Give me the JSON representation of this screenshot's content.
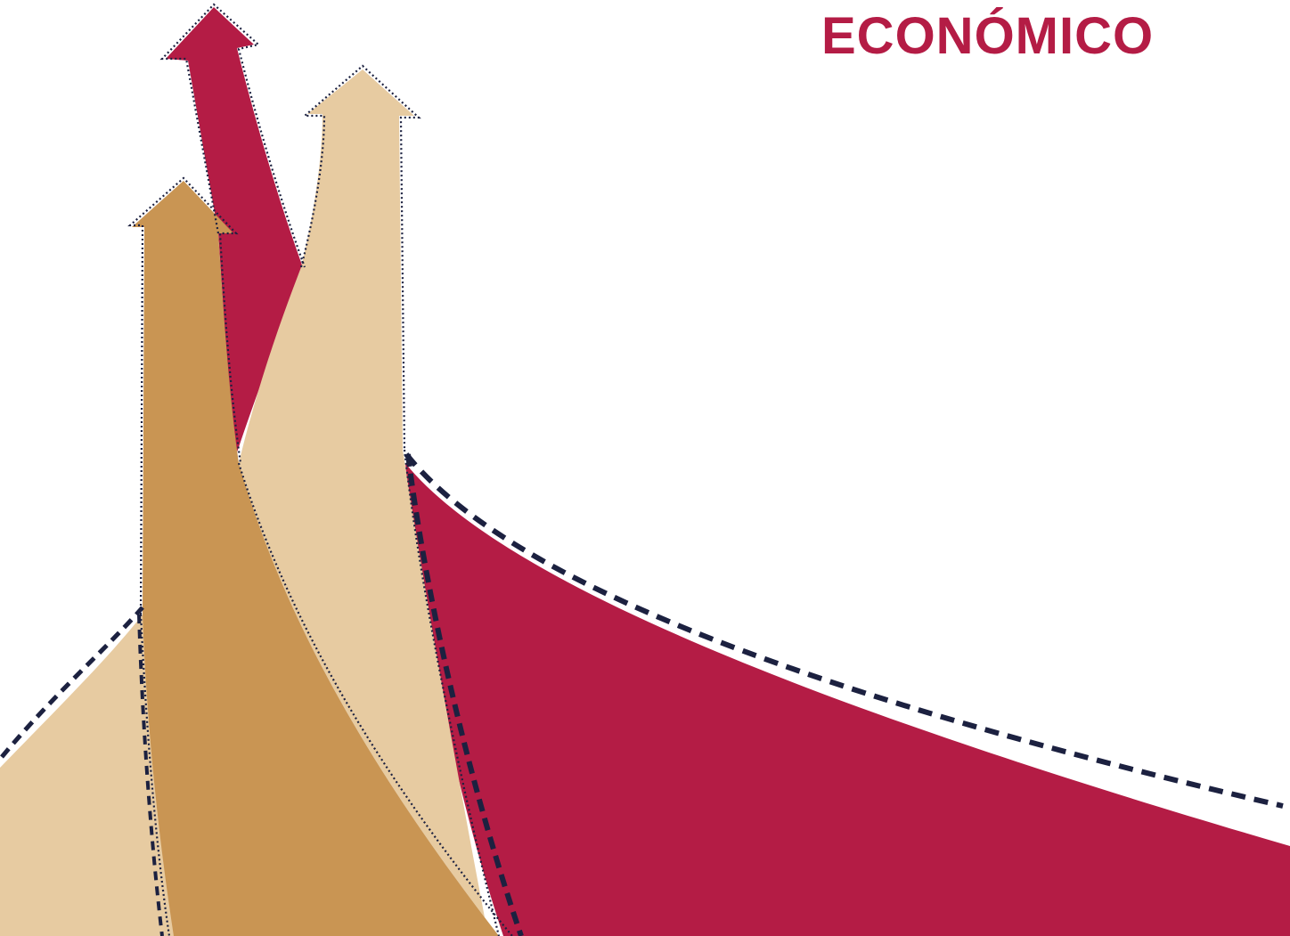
{
  "header": {
    "title": "ECONÓMICO"
  },
  "colors": {
    "crimson": "#B41C45",
    "beige": "#E7CBA1",
    "tan": "#C99553",
    "navy": "#1C2140",
    "background": "#FFFFFF"
  },
  "artwork": {
    "arrows": [
      {
        "name": "crimson-arrow",
        "color": "crimson"
      },
      {
        "name": "beige-arrow",
        "color": "beige"
      },
      {
        "name": "tan-arrow",
        "color": "tan"
      }
    ]
  }
}
